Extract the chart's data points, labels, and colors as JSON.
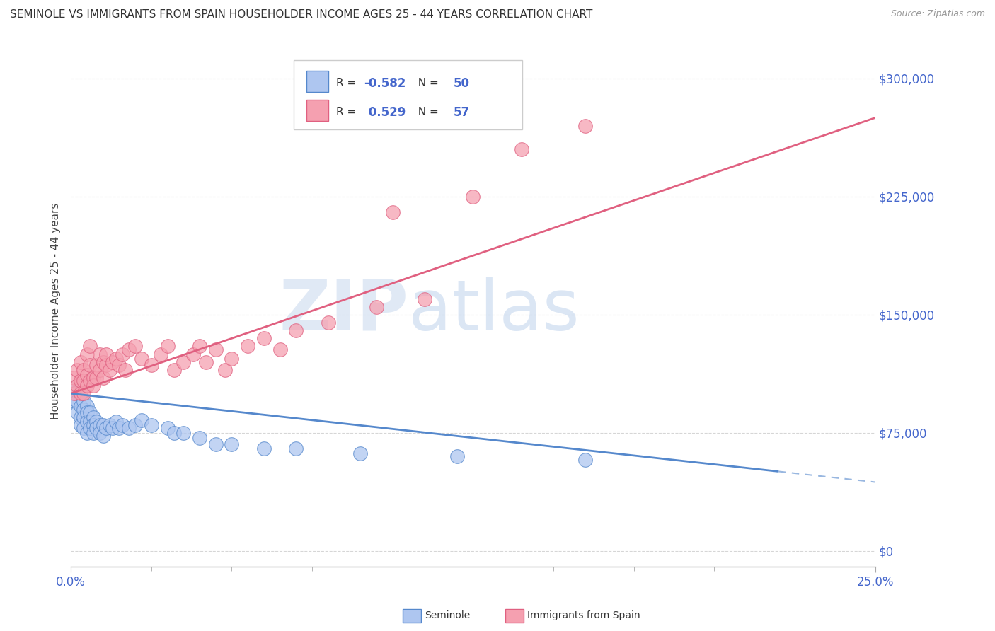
{
  "title": "SEMINOLE VS IMMIGRANTS FROM SPAIN HOUSEHOLDER INCOME AGES 25 - 44 YEARS CORRELATION CHART",
  "source": "Source: ZipAtlas.com",
  "ylabel": "Householder Income Ages 25 - 44 years",
  "xlim": [
    0.0,
    0.25
  ],
  "ylim": [
    -10000,
    315000
  ],
  "yticks": [
    0,
    75000,
    150000,
    225000,
    300000
  ],
  "ytick_labels": [
    "$0",
    "$75,000",
    "$150,000",
    "$225,000",
    "$300,000"
  ],
  "watermark_zip": "ZIP",
  "watermark_atlas": "atlas",
  "seminole_color": "#aec6f0",
  "spain_color": "#f5a0b0",
  "seminole_line_color": "#5588cc",
  "spain_line_color": "#e06080",
  "r_seminole": -0.582,
  "n_seminole": 50,
  "r_spain": 0.529,
  "n_spain": 57,
  "legend_r_color": "#4466cc",
  "title_color": "#333333",
  "label_color": "#4466cc",
  "seminole_x": [
    0.001,
    0.001,
    0.002,
    0.002,
    0.002,
    0.003,
    0.003,
    0.003,
    0.003,
    0.004,
    0.004,
    0.004,
    0.004,
    0.005,
    0.005,
    0.005,
    0.005,
    0.006,
    0.006,
    0.006,
    0.007,
    0.007,
    0.007,
    0.008,
    0.008,
    0.009,
    0.009,
    0.01,
    0.01,
    0.011,
    0.012,
    0.013,
    0.014,
    0.015,
    0.016,
    0.018,
    0.02,
    0.022,
    0.025,
    0.03,
    0.032,
    0.035,
    0.04,
    0.045,
    0.05,
    0.06,
    0.07,
    0.09,
    0.12,
    0.16
  ],
  "seminole_y": [
    100000,
    95000,
    105000,
    95000,
    88000,
    100000,
    92000,
    85000,
    80000,
    95000,
    90000,
    85000,
    78000,
    92000,
    88000,
    82000,
    75000,
    88000,
    82000,
    78000,
    85000,
    80000,
    75000,
    82000,
    78000,
    80000,
    75000,
    80000,
    73000,
    78000,
    80000,
    78000,
    82000,
    78000,
    80000,
    78000,
    80000,
    83000,
    80000,
    78000,
    75000,
    75000,
    72000,
    68000,
    68000,
    65000,
    65000,
    62000,
    60000,
    58000
  ],
  "spain_x": [
    0.001,
    0.001,
    0.002,
    0.002,
    0.003,
    0.003,
    0.003,
    0.004,
    0.004,
    0.004,
    0.005,
    0.005,
    0.005,
    0.006,
    0.006,
    0.006,
    0.007,
    0.007,
    0.008,
    0.008,
    0.009,
    0.009,
    0.01,
    0.01,
    0.011,
    0.011,
    0.012,
    0.013,
    0.014,
    0.015,
    0.016,
    0.017,
    0.018,
    0.02,
    0.022,
    0.025,
    0.028,
    0.03,
    0.032,
    0.035,
    0.038,
    0.04,
    0.042,
    0.045,
    0.048,
    0.05,
    0.055,
    0.06,
    0.065,
    0.07,
    0.08,
    0.095,
    0.1,
    0.11,
    0.125,
    0.14,
    0.16
  ],
  "spain_y": [
    110000,
    100000,
    115000,
    105000,
    120000,
    108000,
    100000,
    115000,
    108000,
    100000,
    112000,
    105000,
    125000,
    118000,
    108000,
    130000,
    110000,
    105000,
    118000,
    110000,
    115000,
    125000,
    110000,
    120000,
    118000,
    125000,
    115000,
    120000,
    122000,
    118000,
    125000,
    115000,
    128000,
    130000,
    122000,
    118000,
    125000,
    130000,
    115000,
    120000,
    125000,
    130000,
    120000,
    128000,
    115000,
    122000,
    130000,
    135000,
    128000,
    140000,
    145000,
    155000,
    215000,
    160000,
    225000,
    255000,
    270000
  ]
}
